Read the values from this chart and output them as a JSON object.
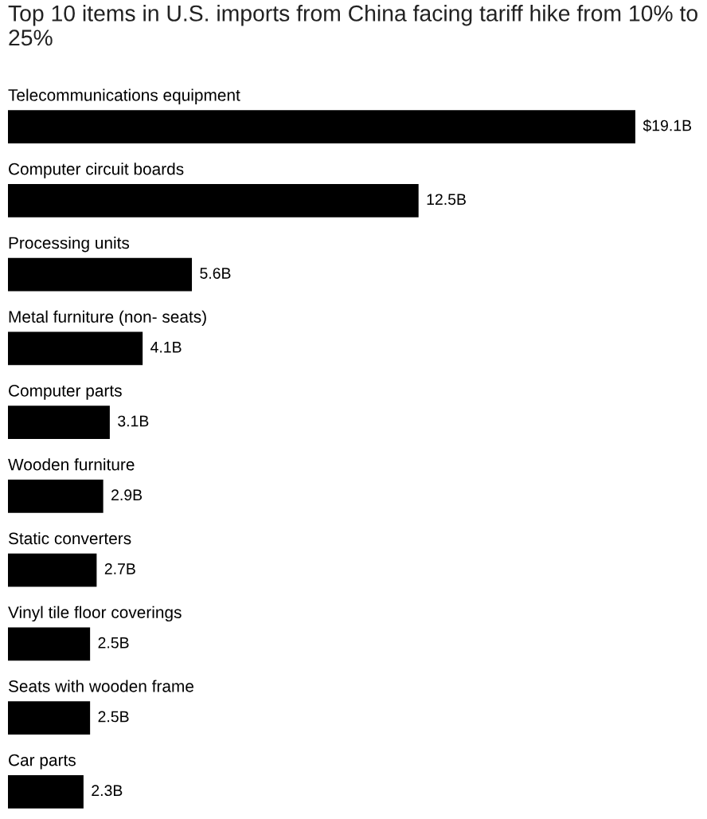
{
  "chart_data": {
    "type": "bar",
    "orientation": "horizontal",
    "title": "Top 10 items in U.S. imports from China facing tariff hike from 10% to 25%",
    "categories": [
      "Telecommunications equipment",
      "Computer circuit boards",
      "Processing units",
      "Metal furniture (non- seats)",
      "Computer parts",
      "Wooden furniture",
      "Static converters",
      "Vinyl tile floor coverings",
      "Seats with wooden frame",
      "Car parts"
    ],
    "values": [
      19.1,
      12.5,
      5.6,
      4.1,
      3.1,
      2.9,
      2.7,
      2.5,
      2.5,
      2.3
    ],
    "value_labels": [
      "$19.1B",
      "12.5B",
      "5.6B",
      "4.1B",
      "3.1B",
      "2.9B",
      "2.7B",
      "2.5B",
      "2.5B",
      "2.3B"
    ],
    "color": "#000000"
  }
}
